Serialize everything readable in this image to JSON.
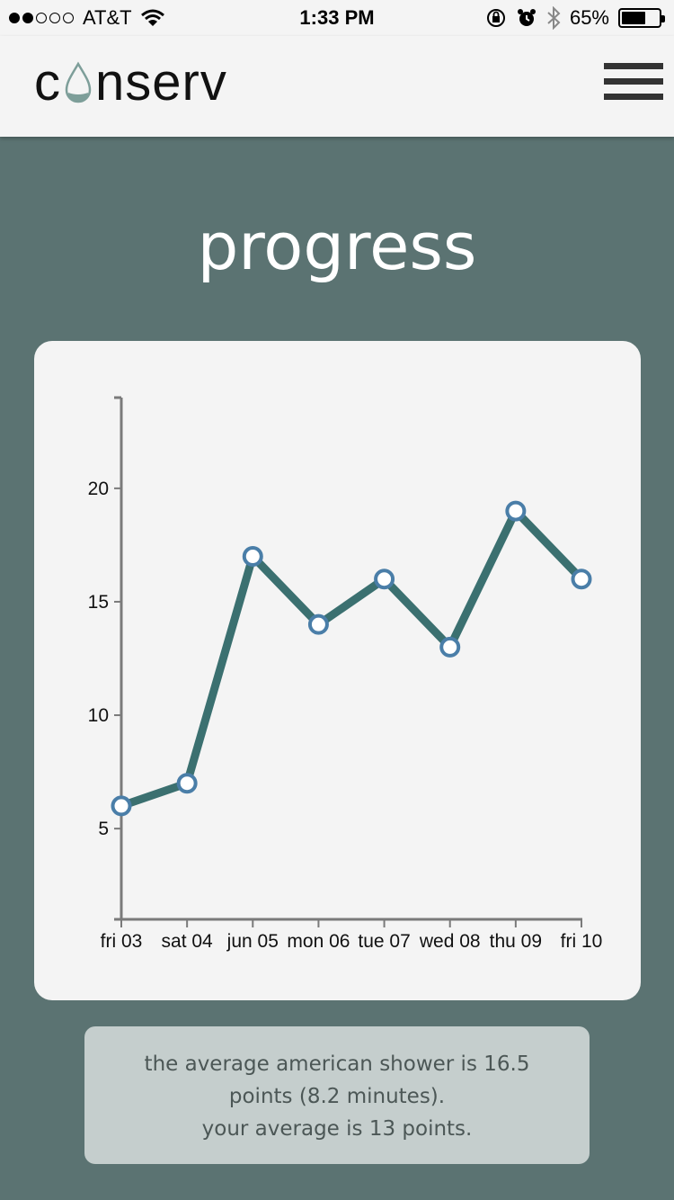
{
  "status_bar": {
    "carrier": "AT&T",
    "time": "1:33 PM",
    "battery": "65%",
    "battery_level": 0.65
  },
  "header": {
    "logo": {
      "prefix": "c",
      "suffix": "nserv",
      "drop_color": "#7d9e99"
    }
  },
  "page_title": "progress",
  "chart_data": {
    "type": "line",
    "categories": [
      "fri 03",
      "sat 04",
      "jun 05",
      "mon 06",
      "tue 07",
      "wed 08",
      "thu 09",
      "fri 10"
    ],
    "values": [
      6,
      7,
      17,
      14,
      16,
      13,
      19,
      16
    ],
    "yticks": [
      5,
      10,
      15,
      20
    ],
    "ylim": [
      1,
      24
    ],
    "title": "",
    "xlabel": "",
    "ylabel": "",
    "line_color": "#3b7070",
    "marker_color": "#4a7ea8"
  },
  "info": {
    "line1": "the average american shower is 16.5",
    "line2": "points (8.2 minutes).",
    "line3": "your average is 13 points."
  }
}
